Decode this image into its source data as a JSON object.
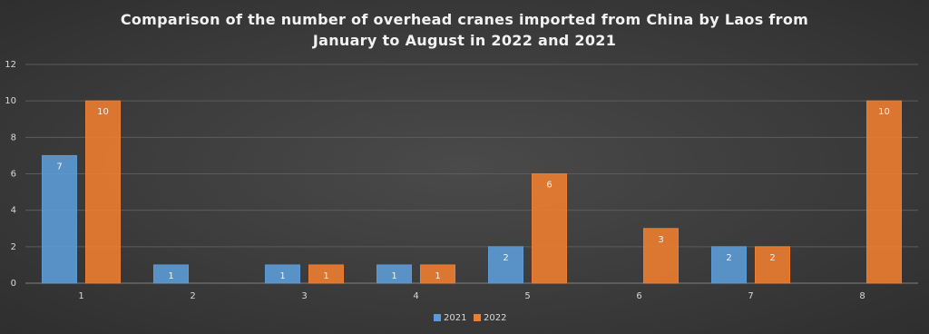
{
  "chart_data": {
    "type": "bar",
    "title": "Comparison of the number of overhead cranes imported from China by Laos from January to August in 2022 and 2021",
    "categories": [
      "1",
      "2",
      "3",
      "4",
      "5",
      "6",
      "7",
      "8"
    ],
    "series": [
      {
        "name": "2021",
        "color": "#5b9bd5",
        "values": [
          7,
          1,
          1,
          1,
          2,
          null,
          2,
          null
        ]
      },
      {
        "name": "2022",
        "color": "#ed7d31",
        "values": [
          10,
          null,
          1,
          1,
          6,
          3,
          2,
          10
        ]
      }
    ],
    "ylim": [
      0,
      12
    ],
    "yticks": [
      0,
      2,
      4,
      6,
      8,
      10,
      12
    ],
    "grid": true,
    "legend": "bottom"
  }
}
